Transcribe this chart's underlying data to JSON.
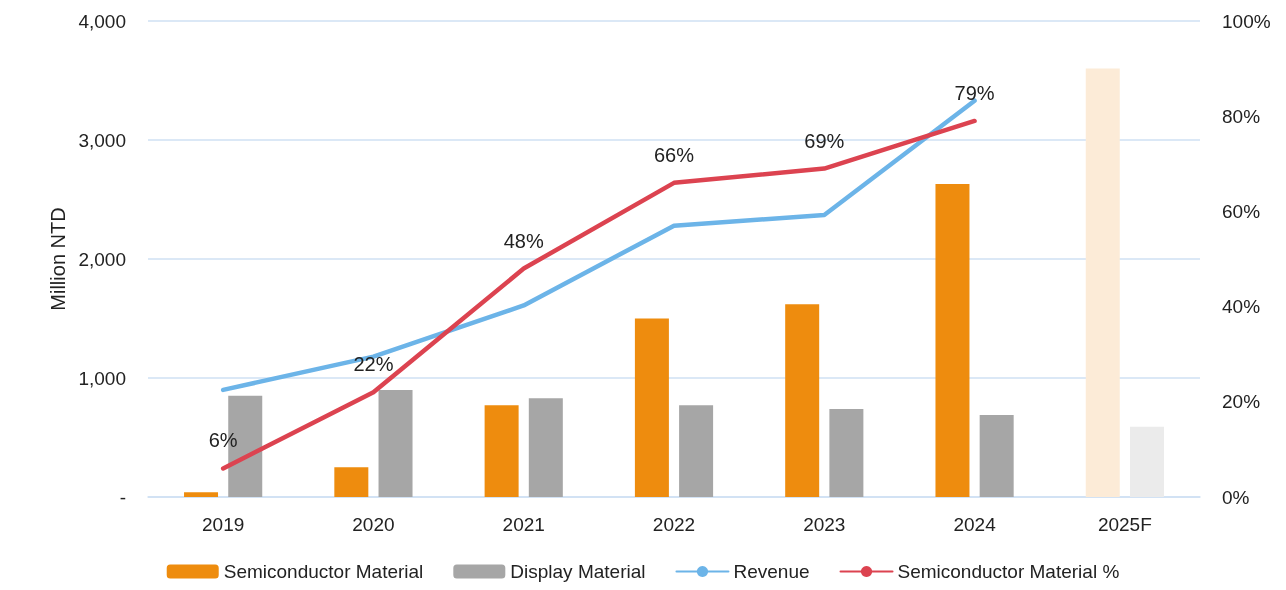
{
  "chart_data": {
    "type": "bar",
    "ylabel": "Million NTD",
    "categories": [
      "2019",
      "2020",
      "2021",
      "2022",
      "2023",
      "2024",
      "2025F"
    ],
    "series": [
      {
        "name": "Semiconductor Material",
        "color": "#ee8c0e",
        "colors": [
          "#ee8c0e",
          "#ee8c0e",
          "#ee8c0e",
          "#ee8c0e",
          "#ee8c0e",
          "#ee8c0e",
          "#fcebd7"
        ],
        "values": [
          40,
          250,
          770,
          1500,
          1620,
          2630,
          3600
        ]
      },
      {
        "name": "Display Material",
        "color": "#a6a6a6",
        "colors": [
          "#a6a6a6",
          "#a6a6a6",
          "#a6a6a6",
          "#a6a6a6",
          "#a6a6a6",
          "#a6a6a6",
          "#ebebeb"
        ],
        "values": [
          850,
          900,
          830,
          770,
          740,
          690,
          590
        ]
      },
      {
        "name": "Revenue",
        "type": "line",
        "color": "#6cb4e8",
        "values": [
          900,
          1180,
          1610,
          2280,
          2370,
          3330,
          null
        ]
      },
      {
        "name": "Semiconductor Material %",
        "type": "line",
        "axis": "y2",
        "color": "#dc4350",
        "values": [
          6,
          22,
          48,
          66,
          69,
          79,
          null
        ],
        "value_labels": [
          "6%",
          "22%",
          "48%",
          "66%",
          "69%",
          "79%",
          null
        ]
      }
    ],
    "ylim": [
      0,
      4000
    ],
    "yticks": [
      {
        "value": 0,
        "label": "-"
      },
      {
        "value": 1000,
        "label": "1,000"
      },
      {
        "value": 2000,
        "label": "2,000"
      },
      {
        "value": 3000,
        "label": "3,000"
      },
      {
        "value": 4000,
        "label": "4,000"
      }
    ],
    "y2lim": [
      0,
      100
    ],
    "y2ticks": [
      {
        "value": 0,
        "label": "0%"
      },
      {
        "value": 20,
        "label": "20%"
      },
      {
        "value": 40,
        "label": "40%"
      },
      {
        "value": 60,
        "label": "60%"
      },
      {
        "value": 80,
        "label": "80%"
      },
      {
        "value": 100,
        "label": "100%"
      }
    ],
    "grid": "y",
    "legend": "bottom",
    "marker": "none",
    "line_style": "solid"
  }
}
